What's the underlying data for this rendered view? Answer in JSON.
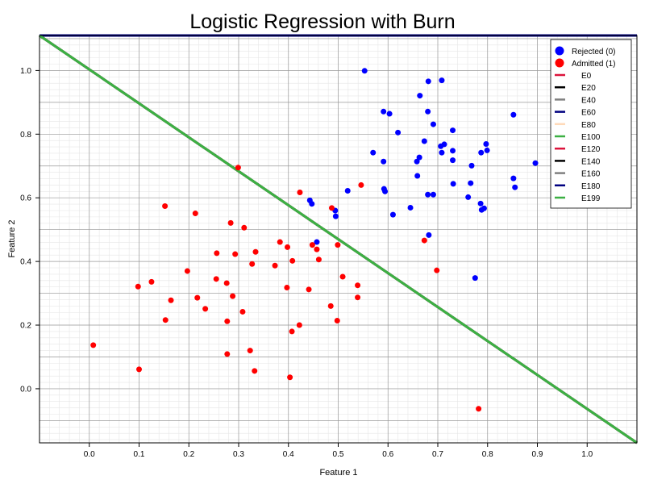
{
  "chart_data": {
    "type": "scatter",
    "title": "Logistic Regression with Burn",
    "xlabel": "Feature 1",
    "ylabel": "Feature 2",
    "xlim": [
      -0.1,
      1.1
    ],
    "ylim": [
      -0.17,
      1.11
    ],
    "grid": true,
    "legend_position": "top-right",
    "x_ticks": [
      0.0,
      0.1,
      0.2,
      0.3,
      0.4,
      0.5,
      0.6,
      0.7,
      0.8,
      0.9,
      1.0
    ],
    "x_tick_labels": [
      "0.0",
      "0.1",
      "0.2",
      "0.3",
      "0.4",
      "0.5",
      "0.6",
      "0.7",
      "0.8",
      "0.9",
      "1.0"
    ],
    "y_ticks": [
      0.0,
      0.2,
      0.4,
      0.6,
      0.8,
      1.0
    ],
    "y_tick_labels": [
      "0.0",
      "0.2",
      "0.4",
      "0.6",
      "0.8",
      "1.0"
    ],
    "series": [
      {
        "name": "Rejected (0)",
        "color": "#0000ff",
        "points": [
          [
            0.553,
            0.999
          ],
          [
            0.681,
            0.966
          ],
          [
            0.708,
            0.969
          ],
          [
            0.664,
            0.921
          ],
          [
            0.591,
            0.871
          ],
          [
            0.603,
            0.864
          ],
          [
            0.68,
            0.871
          ],
          [
            0.852,
            0.861
          ],
          [
            0.691,
            0.831
          ],
          [
            0.62,
            0.805
          ],
          [
            0.73,
            0.812
          ],
          [
            0.673,
            0.778
          ],
          [
            0.713,
            0.768
          ],
          [
            0.797,
            0.769
          ],
          [
            0.706,
            0.762
          ],
          [
            0.57,
            0.742
          ],
          [
            0.799,
            0.749
          ],
          [
            0.73,
            0.748
          ],
          [
            0.787,
            0.742
          ],
          [
            0.708,
            0.742
          ],
          [
            0.663,
            0.727
          ],
          [
            0.658,
            0.714
          ],
          [
            0.591,
            0.714
          ],
          [
            0.73,
            0.718
          ],
          [
            0.768,
            0.701
          ],
          [
            0.896,
            0.709
          ],
          [
            0.659,
            0.669
          ],
          [
            0.852,
            0.661
          ],
          [
            0.766,
            0.646
          ],
          [
            0.731,
            0.644
          ],
          [
            0.855,
            0.633
          ],
          [
            0.519,
            0.622
          ],
          [
            0.592,
            0.628
          ],
          [
            0.594,
            0.62
          ],
          [
            0.68,
            0.61
          ],
          [
            0.691,
            0.61
          ],
          [
            0.761,
            0.602
          ],
          [
            0.443,
            0.592
          ],
          [
            0.447,
            0.581
          ],
          [
            0.786,
            0.582
          ],
          [
            0.793,
            0.567
          ],
          [
            0.788,
            0.562
          ],
          [
            0.645,
            0.569
          ],
          [
            0.494,
            0.56
          ],
          [
            0.61,
            0.547
          ],
          [
            0.495,
            0.542
          ],
          [
            0.682,
            0.483
          ],
          [
            0.457,
            0.461
          ],
          [
            0.775,
            0.348
          ]
        ]
      },
      {
        "name": "Admitted (1)",
        "color": "#ff0000",
        "points": [
          [
            0.299,
            0.695
          ],
          [
            0.546,
            0.64
          ],
          [
            0.423,
            0.617
          ],
          [
            0.152,
            0.574
          ],
          [
            0.487,
            0.568
          ],
          [
            0.213,
            0.551
          ],
          [
            0.284,
            0.521
          ],
          [
            0.311,
            0.506
          ],
          [
            0.383,
            0.461
          ],
          [
            0.448,
            0.452
          ],
          [
            0.499,
            0.452
          ],
          [
            0.398,
            0.445
          ],
          [
            0.457,
            0.438
          ],
          [
            0.256,
            0.426
          ],
          [
            0.293,
            0.423
          ],
          [
            0.334,
            0.43
          ],
          [
            0.461,
            0.406
          ],
          [
            0.408,
            0.402
          ],
          [
            0.327,
            0.392
          ],
          [
            0.373,
            0.387
          ],
          [
            0.197,
            0.37
          ],
          [
            0.698,
            0.372
          ],
          [
            0.673,
            0.466
          ],
          [
            0.509,
            0.352
          ],
          [
            0.255,
            0.345
          ],
          [
            0.125,
            0.336
          ],
          [
            0.276,
            0.332
          ],
          [
            0.098,
            0.321
          ],
          [
            0.397,
            0.318
          ],
          [
            0.441,
            0.312
          ],
          [
            0.539,
            0.325
          ],
          [
            0.288,
            0.291
          ],
          [
            0.539,
            0.287
          ],
          [
            0.217,
            0.286
          ],
          [
            0.164,
            0.278
          ],
          [
            0.485,
            0.26
          ],
          [
            0.233,
            0.251
          ],
          [
            0.308,
            0.242
          ],
          [
            0.153,
            0.216
          ],
          [
            0.277,
            0.212
          ],
          [
            0.498,
            0.214
          ],
          [
            0.422,
            0.2
          ],
          [
            0.407,
            0.18
          ],
          [
            0.008,
            0.137
          ],
          [
            0.277,
            0.109
          ],
          [
            0.323,
            0.12
          ],
          [
            0.1,
            0.061
          ],
          [
            0.332,
            0.056
          ],
          [
            0.403,
            0.036
          ],
          [
            0.782,
            -0.063
          ]
        ]
      }
    ],
    "decision_boundaries": [
      {
        "name": "E0",
        "color": "#dc143c",
        "line": [
          [
            -0.1,
            1.11
          ],
          [
            1.1,
            1.11
          ]
        ]
      },
      {
        "name": "E20",
        "color": "#000000",
        "line": [
          [
            -0.1,
            1.11
          ],
          [
            1.1,
            1.11
          ]
        ]
      },
      {
        "name": "E40",
        "color": "#808080",
        "line": [
          [
            -0.1,
            1.11
          ],
          [
            1.1,
            1.11
          ]
        ]
      },
      {
        "name": "E60",
        "color": "#000080",
        "line": [
          [
            -0.1,
            1.11
          ],
          [
            1.1,
            1.11
          ]
        ]
      },
      {
        "name": "E80",
        "color": "#ffdab9",
        "line": [
          [
            -0.1,
            1.11
          ],
          [
            1.1,
            1.11
          ]
        ]
      },
      {
        "name": "E100",
        "color": "#3cb043",
        "line": [
          [
            -0.1,
            1.11
          ],
          [
            1.1,
            -0.17
          ]
        ]
      },
      {
        "name": "E120",
        "color": "#dc143c",
        "line": [
          [
            -0.1,
            1.11
          ],
          [
            1.1,
            -0.17
          ]
        ]
      },
      {
        "name": "E140",
        "color": "#000000",
        "line": [
          [
            -0.1,
            1.11
          ],
          [
            1.1,
            -0.17
          ]
        ]
      },
      {
        "name": "E160",
        "color": "#808080",
        "line": [
          [
            -0.1,
            1.11
          ],
          [
            1.1,
            -0.17
          ]
        ]
      },
      {
        "name": "E180",
        "color": "#000080",
        "line": [
          [
            -0.1,
            1.11
          ],
          [
            1.1,
            1.11
          ]
        ]
      },
      {
        "name": "E199",
        "color": "#3cb043",
        "line": [
          [
            -0.1,
            1.11
          ],
          [
            1.1,
            -0.17
          ]
        ]
      }
    ]
  }
}
